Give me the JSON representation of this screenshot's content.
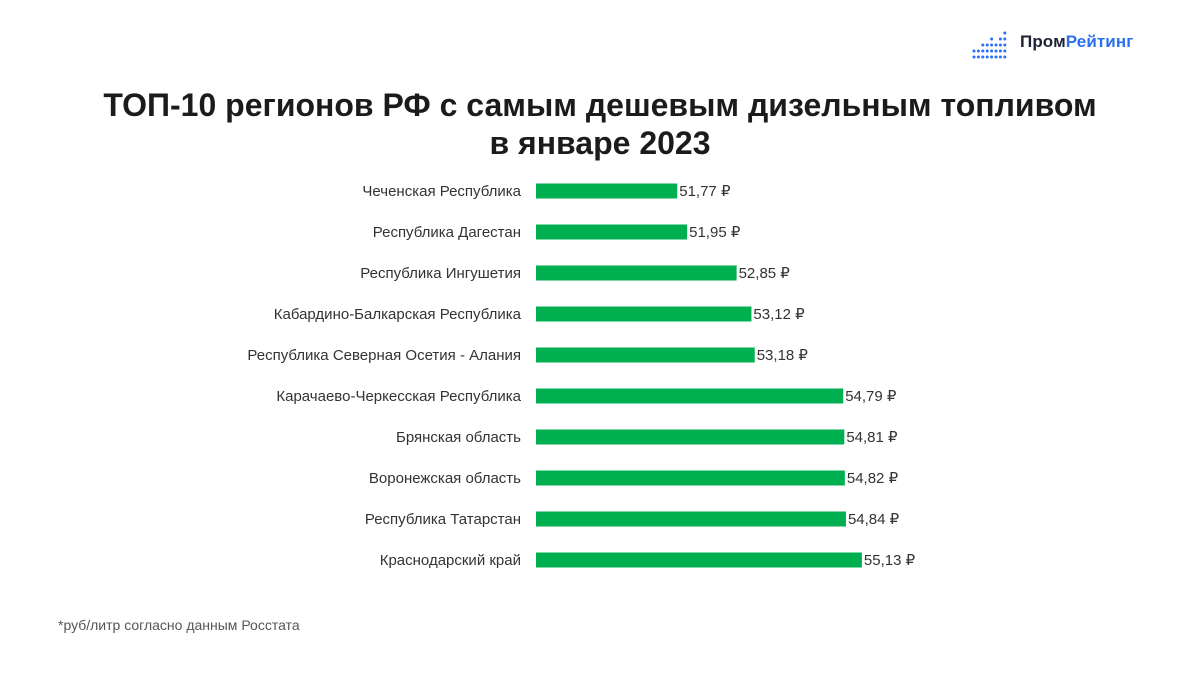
{
  "brand": {
    "name_part1": "Пром",
    "name_part2": "Рейтинг",
    "dark_color": "#1f2233",
    "accent_color": "#2b6ff2",
    "icon": "bar-dots-icon"
  },
  "title_lines": [
    "ТОП-10 регионов РФ с самым дешевым дизельным топливом",
    "в январе 2023"
  ],
  "footnote": "*руб/литр согласно данным Росстата",
  "chart_data": {
    "type": "bar",
    "orientation": "horizontal",
    "title": "ТОП-10 регионов РФ с самым дешевым дизельным топливом в январе 2023",
    "categories": [
      "Чеченская Республика",
      "Республика Дагестан",
      "Республика Ингушетия",
      "Кабардино-Балкарская Республика",
      "Республика Северная Осетия - Алания",
      "Карачаево-Черкесская Республика",
      "Брянская область",
      "Воронежская область",
      "Республика Татарстан",
      "Краснодарский край"
    ],
    "values": [
      51.77,
      51.95,
      52.85,
      53.12,
      53.18,
      54.79,
      54.81,
      54.82,
      54.84,
      55.13
    ],
    "value_labels": [
      "51,77 ₽",
      "51,95 ₽",
      "52,85 ₽",
      "53,12 ₽",
      "53,18 ₽",
      "54,79 ₽",
      "54,81 ₽",
      "54,82 ₽",
      "54,84 ₽",
      "55,13 ₽"
    ],
    "xlim": [
      49.2,
      55.15
    ],
    "bar_color": "#00b050",
    "grid": false,
    "legend": "none"
  }
}
